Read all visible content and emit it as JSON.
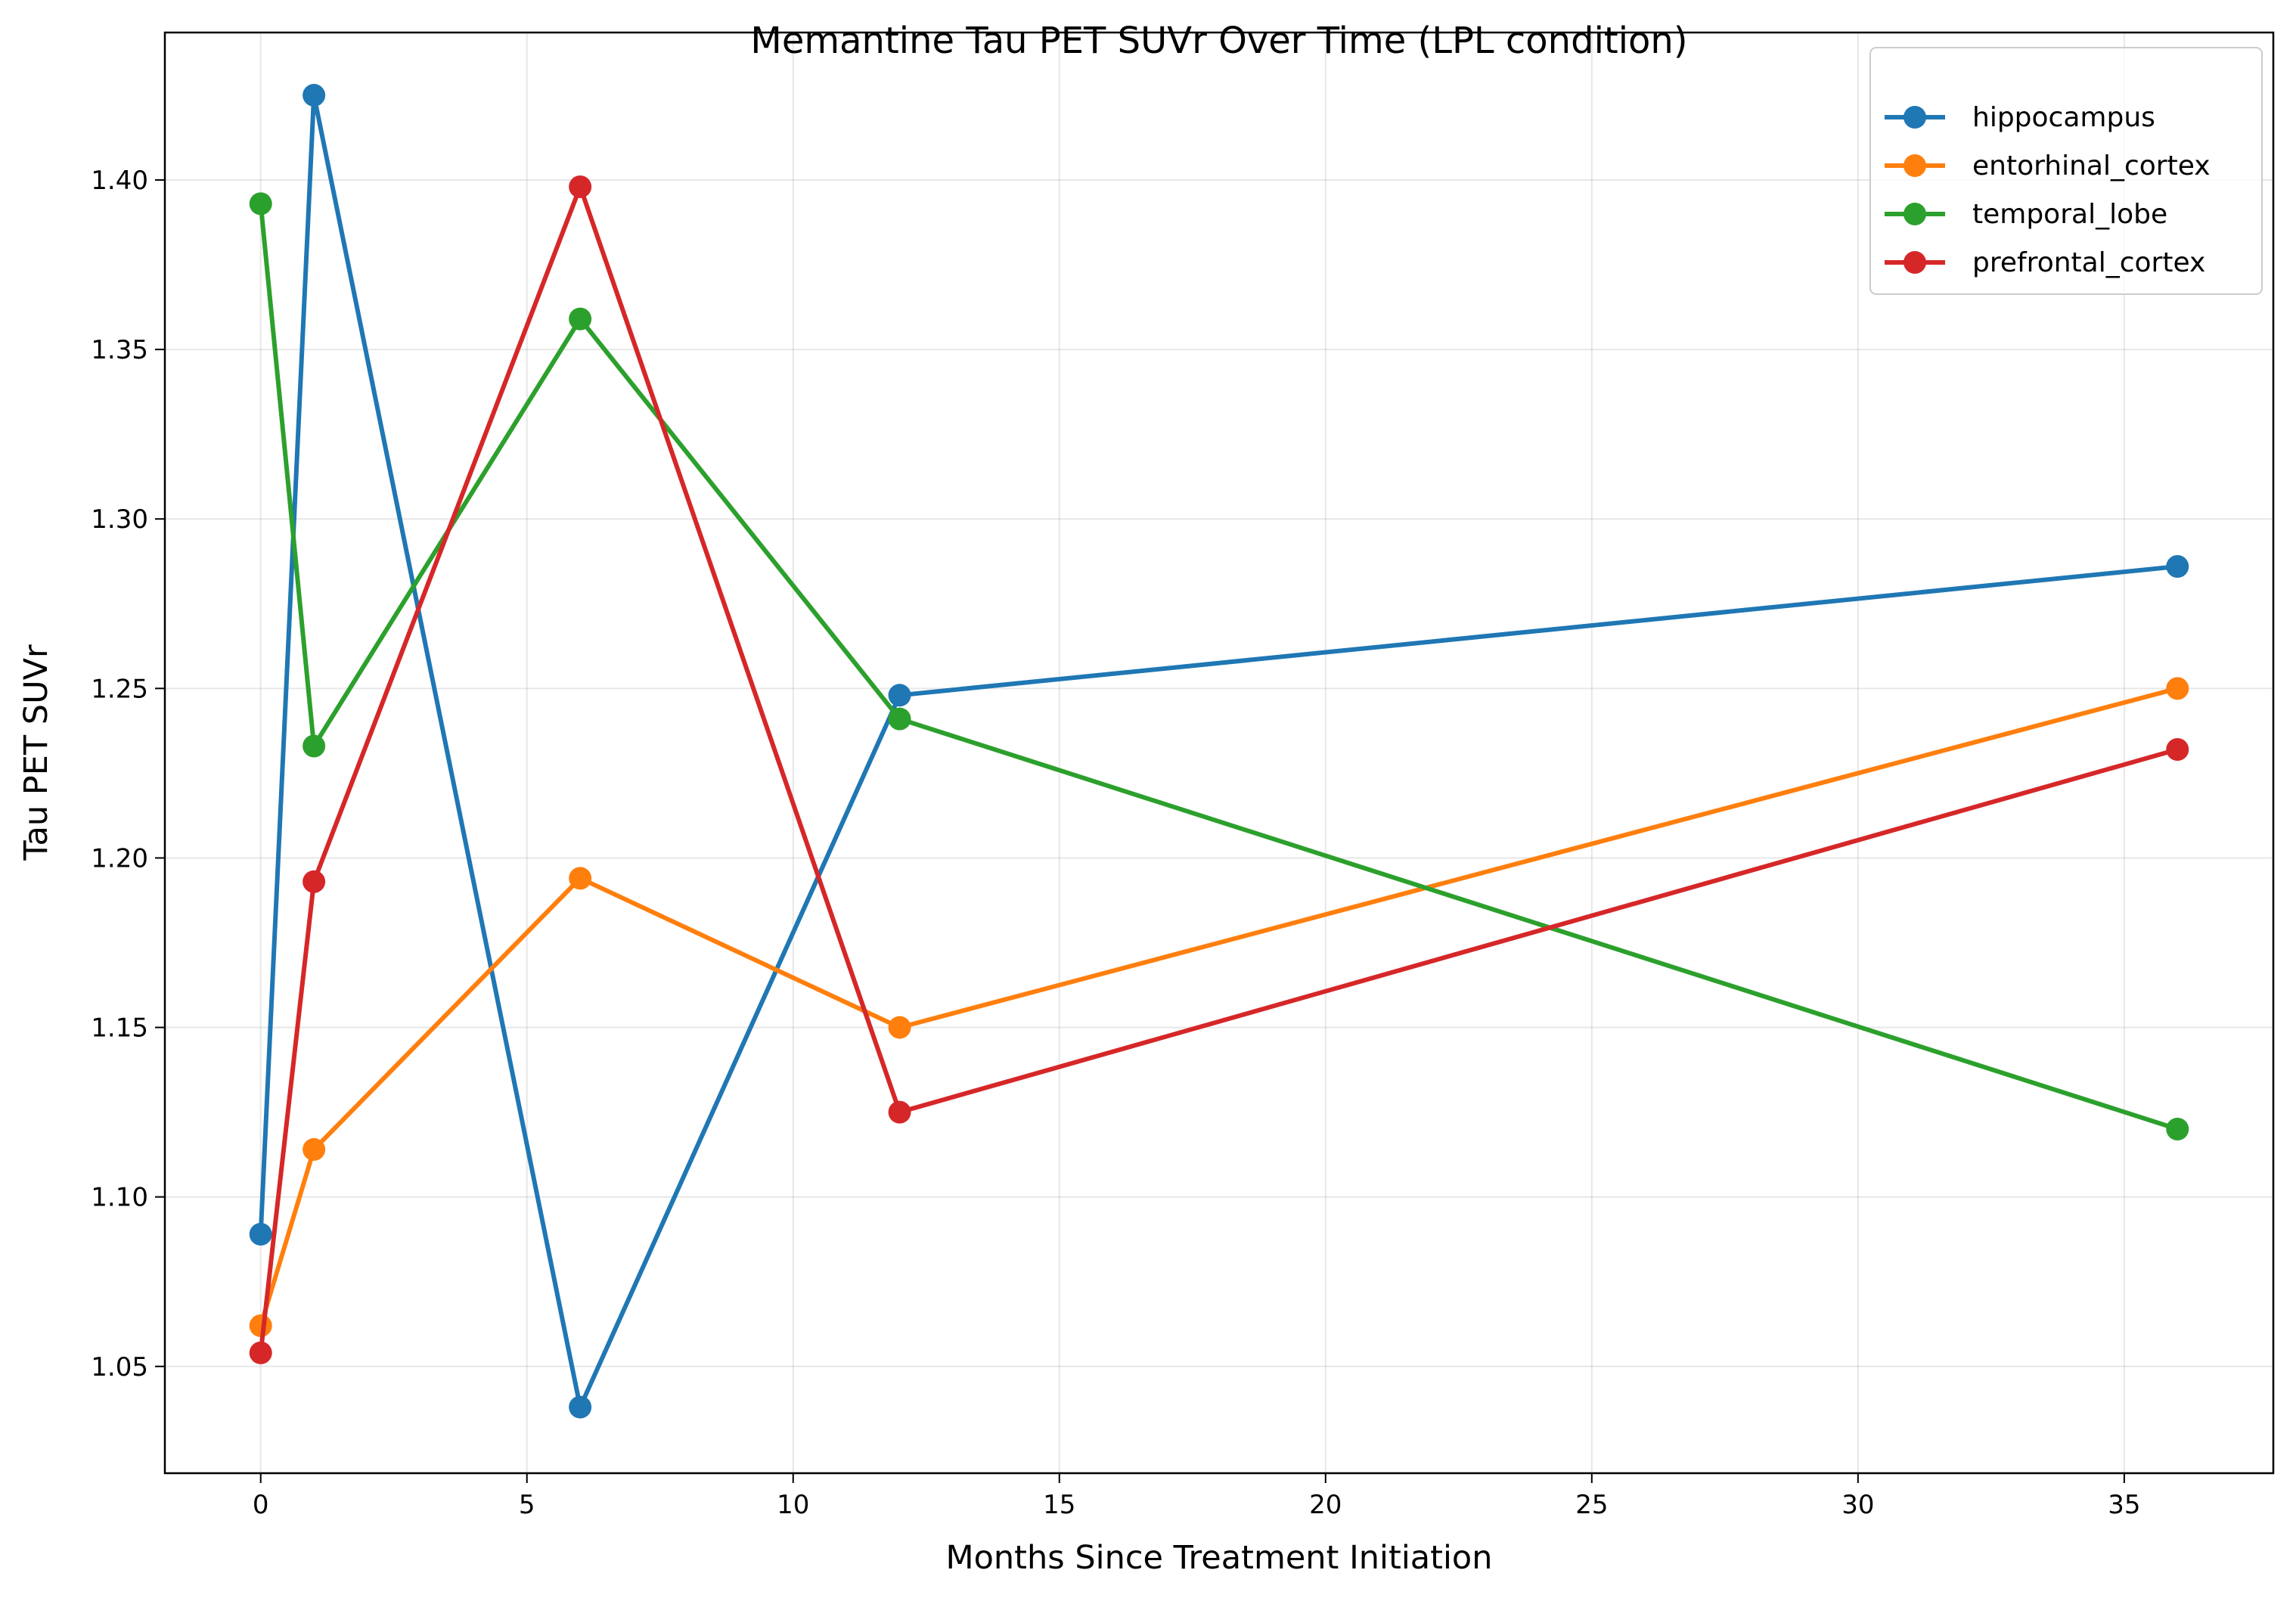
{
  "chart_data": {
    "type": "line",
    "title": "Memantine Tau PET SUVr Over Time (LPL condition)",
    "xlabel": "Months Since Treatment Initiation",
    "ylabel": "Tau PET SUVr",
    "x": [
      0,
      1,
      6,
      12,
      36
    ],
    "xlim": [
      -1.8,
      37.8
    ],
    "ylim": [
      1.0185,
      1.4435
    ],
    "xticks": [
      0,
      5,
      10,
      15,
      20,
      25,
      30,
      35
    ],
    "yticks": [
      1.05,
      1.1,
      1.15,
      1.2,
      1.25,
      1.3,
      1.35,
      1.4
    ],
    "grid": true,
    "legend_position": "top-right",
    "series": [
      {
        "name": "hippocampus",
        "color": "#1f77b4",
        "values": [
          1.089,
          1.425,
          1.038,
          1.248,
          1.286
        ]
      },
      {
        "name": "entorhinal_cortex",
        "color": "#ff7f0e",
        "values": [
          1.062,
          1.114,
          1.194,
          1.15,
          1.25
        ]
      },
      {
        "name": "temporal_lobe",
        "color": "#2ca02c",
        "values": [
          1.393,
          1.233,
          1.359,
          1.241,
          1.12
        ]
      },
      {
        "name": "prefrontal_cortex",
        "color": "#d62728",
        "values": [
          1.054,
          1.193,
          1.398,
          1.125,
          1.232
        ]
      }
    ]
  }
}
